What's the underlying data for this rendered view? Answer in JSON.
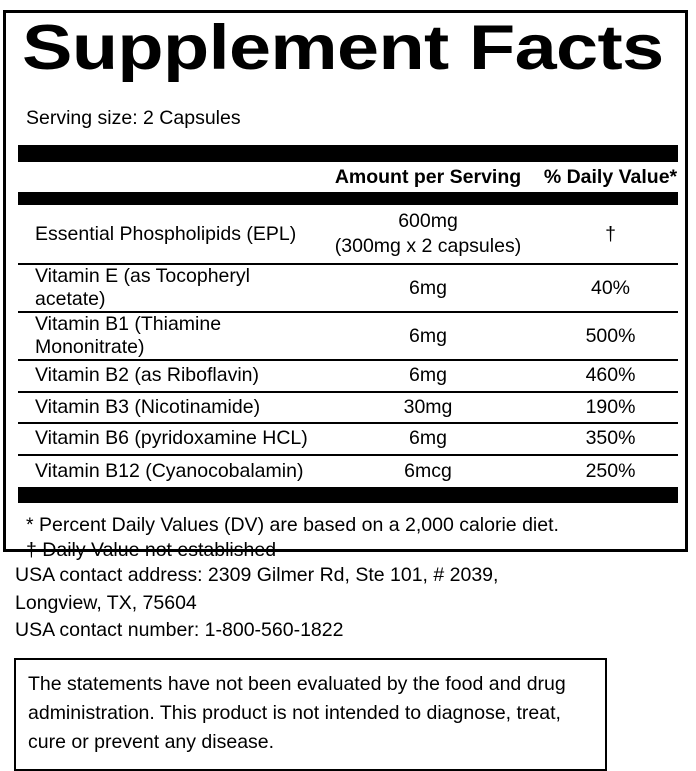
{
  "panel": {
    "title": "Supplement Facts",
    "serving_size": "Serving size: 2 Capsules",
    "columns": {
      "amount": "Amount per Serving",
      "daily_value": "% Daily Value*"
    },
    "nutrients": [
      {
        "name": "Essential Phospholipids (EPL)",
        "amount": "600mg",
        "amount_note": "(300mg x 2 capsules)",
        "daily_value": "†"
      },
      {
        "name": "Vitamin E (as Tocopheryl acetate)",
        "amount": "6mg",
        "daily_value": "40%"
      },
      {
        "name": "Vitamin B1 (Thiamine Mononitrate)",
        "amount": "6mg",
        "daily_value": "500%"
      },
      {
        "name": "Vitamin B2 (as Riboflavin)",
        "amount": "6mg",
        "daily_value": "460%"
      },
      {
        "name": "Vitamin B3 (Nicotinamide)",
        "amount": "30mg",
        "daily_value": "190%"
      },
      {
        "name": "Vitamin B6 (pyridoxamine HCL)",
        "amount": "6mg",
        "daily_value": "350%"
      },
      {
        "name": "Vitamin B12 (Cyanocobalamin)",
        "amount": "6mcg",
        "daily_value": "250%"
      }
    ],
    "footnotes": [
      "* Percent Daily Values (DV) are based on a 2,000 calorie diet.",
      "† Daily Value not established"
    ]
  },
  "contact": {
    "lines": [
      "USA contact address: 2309 Gilmer Rd, Ste 101, # 2039,",
      "Longview, TX, 75604",
      "USA contact number: 1-800-560-1822"
    ]
  },
  "disclaimer": {
    "text": "The statements have not been evaluated by the food and drug administration. This product is not intended to diagnose, treat, cure or prevent any disease."
  },
  "colors": {
    "background": "#ffffff",
    "text": "#000000",
    "border": "#000000"
  }
}
